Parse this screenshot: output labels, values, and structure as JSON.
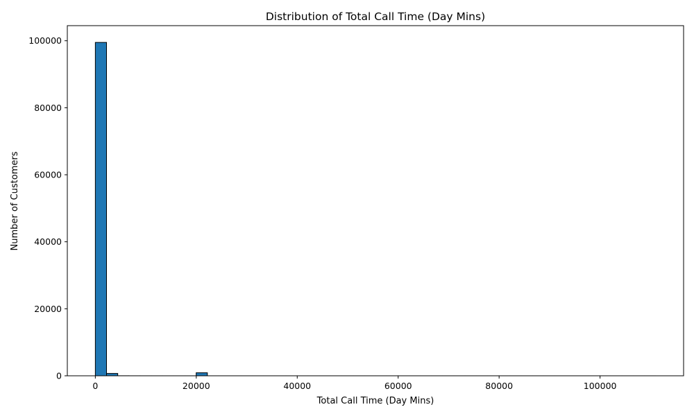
{
  "chart_data": {
    "type": "bar",
    "title": "Distribution of Total Call Time (Day Mins)",
    "xlabel": "Total Call Time (Day Mins)",
    "ylabel": "Number of Customers",
    "xlim": [
      -5550,
      116550
    ],
    "ylim": [
      0,
      104500
    ],
    "xticks": [
      0,
      20000,
      40000,
      60000,
      80000,
      100000
    ],
    "yticks": [
      0,
      20000,
      40000,
      60000,
      80000,
      100000
    ],
    "grid": false,
    "legend": "none",
    "bar_color": "#1f77b4",
    "edge_color": "#000000",
    "bins": {
      "start": 0,
      "width": 2220,
      "counts": [
        99500,
        700,
        15,
        8,
        5,
        4,
        3,
        3,
        3,
        900,
        3,
        3,
        2,
        2,
        2,
        2,
        2,
        2,
        2,
        2,
        2,
        2,
        2,
        2,
        2,
        2,
        2,
        2,
        2,
        2,
        2,
        2,
        2,
        2,
        2,
        2,
        2,
        2,
        2,
        2,
        2,
        2,
        2,
        2,
        2,
        2,
        2,
        2,
        2,
        2
      ]
    }
  }
}
